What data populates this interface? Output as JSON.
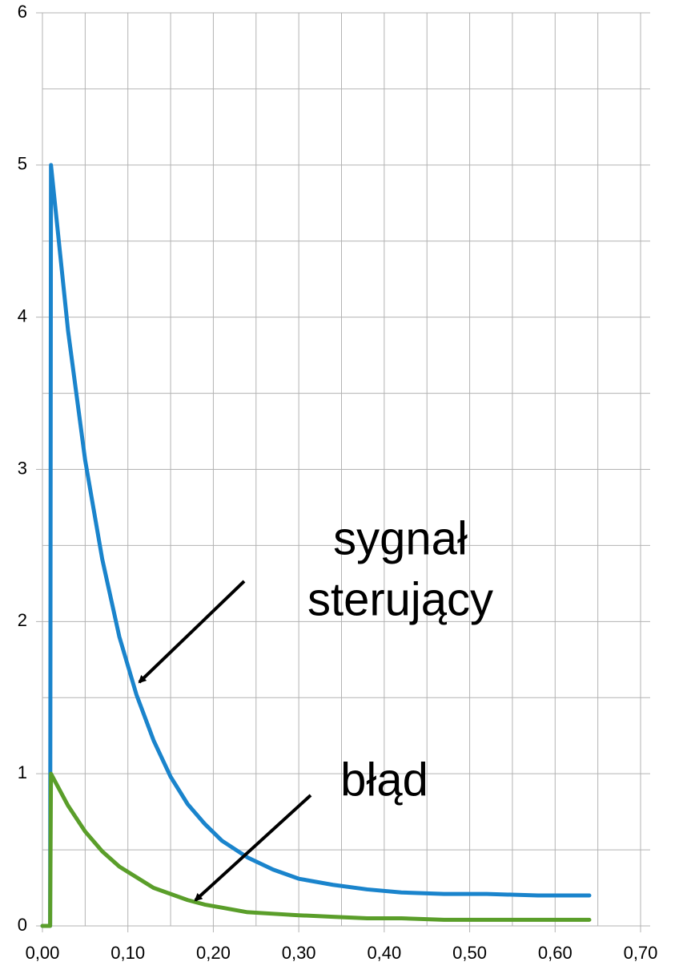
{
  "chart_data": {
    "type": "line",
    "x": [
      0,
      0.009,
      0.01,
      0.03,
      0.05,
      0.07,
      0.09,
      0.11,
      0.13,
      0.15,
      0.17,
      0.19,
      0.21,
      0.24,
      0.27,
      0.3,
      0.34,
      0.38,
      0.42,
      0.47,
      0.52,
      0.58,
      0.64
    ],
    "series": [
      {
        "color": "#1a84cc",
        "values": [
          0,
          0,
          5,
          3.91,
          3.06,
          2.41,
          1.9,
          1.52,
          1.22,
          0.98,
          0.8,
          0.67,
          0.56,
          0.45,
          0.37,
          0.31,
          0.27,
          0.24,
          0.22,
          0.21,
          0.21,
          0.2,
          0.2
        ]
      },
      {
        "color": "#5a9e2a",
        "values": [
          0,
          0,
          1,
          0.79,
          0.62,
          0.49,
          0.39,
          0.32,
          0.25,
          0.21,
          0.17,
          0.14,
          0.12,
          0.09,
          0.08,
          0.07,
          0.06,
          0.05,
          0.05,
          0.04,
          0.04,
          0.04,
          0.04
        ]
      }
    ],
    "xlim": [
      0,
      0.7
    ],
    "xticks": [
      {
        "value": 0,
        "label": "0,00"
      },
      {
        "value": 0.1,
        "label": "0,10"
      },
      {
        "value": 0.2,
        "label": "0,20"
      },
      {
        "value": 0.3,
        "label": "0,30"
      },
      {
        "value": 0.4,
        "label": "0,40"
      },
      {
        "value": 0.5,
        "label": "0,50"
      },
      {
        "value": 0.6,
        "label": "0,60"
      },
      {
        "value": 0.7,
        "label": "0,70"
      }
    ],
    "xminor": [
      0.05,
      0.15,
      0.25,
      0.35,
      0.45,
      0.55,
      0.65
    ],
    "ylim": [
      0,
      6
    ],
    "yticks": [
      0,
      1,
      2,
      3,
      4,
      5,
      6
    ],
    "yminor": [
      0.5,
      1.5,
      2.5,
      3.5,
      4.5,
      5.5
    ],
    "grid": true,
    "annotations": [
      "sygnał",
      "sterujący",
      "błąd"
    ]
  }
}
